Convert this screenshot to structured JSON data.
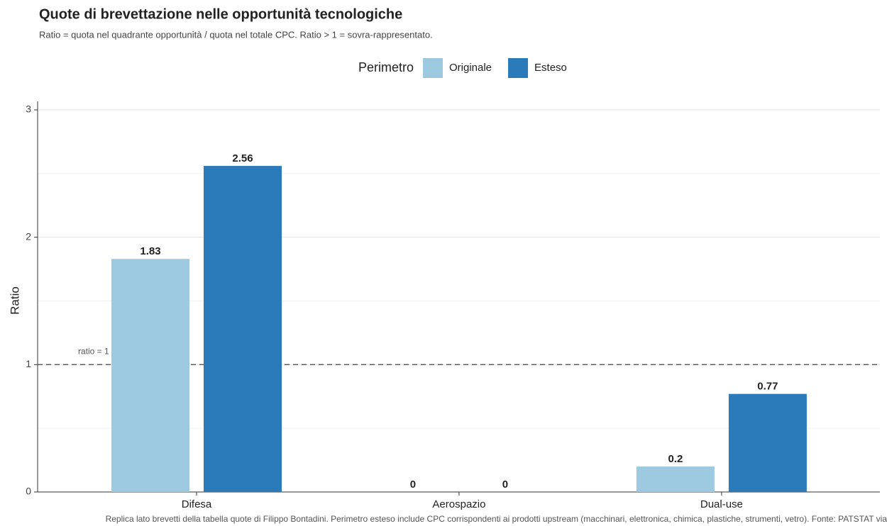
{
  "chart_data": {
    "type": "bar",
    "title": "Quote di brevettazione nelle opportunità tecnologiche",
    "subtitle": "Ratio = quota nel quadrante opportunità / quota nel totale CPC. Ratio > 1 = sovra-rappresentato.",
    "caption": "Replica lato brevetti della tabella quote di Filippo Bontadini. Perimetro esteso include CPC corrispondenti ai prodotti upstream (macchinari, elettronica, chimica, plastiche, strumenti, vetro). Fonte: PATSTAT via",
    "legend_title": "Perimetro",
    "y_label": "Ratio",
    "categories": [
      "Difesa",
      "Aerospazio",
      "Dual-use"
    ],
    "series": [
      {
        "name": "Originale",
        "color": "#9ecae1",
        "values": [
          1.83,
          0,
          0.2
        ]
      },
      {
        "name": "Esteso",
        "color": "#2b7bba",
        "values": [
          2.56,
          0,
          0.77
        ]
      }
    ],
    "ylim": [
      0,
      3
    ],
    "yticks": [
      0,
      1,
      2,
      3
    ],
    "grid": true,
    "reference_line": {
      "value": 1,
      "label": "ratio = 1 (neutro)"
    }
  }
}
